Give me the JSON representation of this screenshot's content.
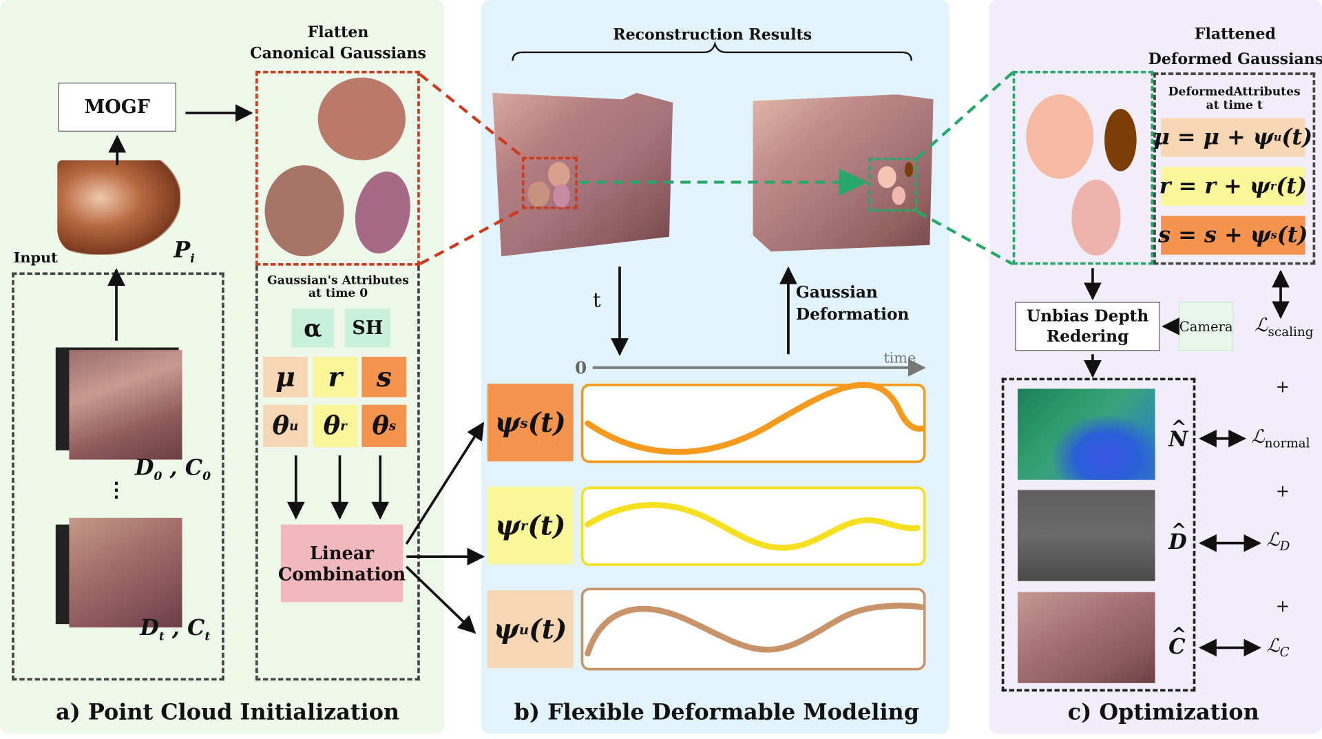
{
  "panel_a": {
    "caption": "a) Point Cloud Initialization",
    "mogf": "MOGF",
    "input_label": "Input",
    "pi_label": "P",
    "pi_sub": "i",
    "d0c0": "D",
    "d0_sub": "0",
    "c0_sep": " , C",
    "c0_sub": "0",
    "dots": "⋮",
    "dtct": "D",
    "dt_sub": "t",
    "ct_sep": " , C",
    "ct_sub": "t",
    "flatten_line1": "Flatten",
    "flatten_line2": "Canonical Gaussians",
    "attr_title1": "Gaussian's Attributes",
    "attr_title2": "at time 0",
    "alpha": "α",
    "sh": "SH",
    "mu": "μ",
    "r": "r",
    "s": "s",
    "theta": "θ",
    "theta_mu_sup": "u",
    "theta_r_sup": "r",
    "theta_s_sup": "s",
    "linear1": "Linear",
    "linear2": "Combination"
  },
  "panel_b": {
    "caption": "b) Flexible Deformable Modeling",
    "recon_title": "Reconstruction Results",
    "t_label": "t",
    "gauss_def1": "Gaussian",
    "gauss_def2": "Deformation",
    "axis_zero": "0",
    "axis_time": "time",
    "psi": "ψ",
    "psi_s_sup": "s",
    "psi_r_sup": "r",
    "psi_u_sup": "u",
    "psi_arg": "(t)"
  },
  "panel_c": {
    "caption": "c) Optimization",
    "flat_line1": "Flattened",
    "flat_line2": "Deformed Gaussians",
    "def_attr1": "DeformedAttributes",
    "def_attr2": "at time t",
    "eq_mu": "μ = μ + ψ",
    "eq_mu_sup": "u",
    "eq_r": "r = r + ψ",
    "eq_r_sup": "r",
    "eq_s": "s = s + ψ",
    "eq_s_sup": "s",
    "eq_tail": "(t)",
    "unbias1": "Unbias Depth",
    "unbias2": "Redering",
    "camera": "Camera",
    "loss_L": "ℒ",
    "loss_scaling": "scaling",
    "loss_normal": "normal",
    "loss_D": "D",
    "loss_C": "C",
    "plus": "+",
    "n_hat": "N",
    "d_hat": "D",
    "c_hat": "C"
  },
  "colors": {
    "panel_a_bg": "#eef8ea",
    "panel_b_bg": "#e2f3fc",
    "panel_c_bg": "#f1eefa",
    "red_dash": "#cc3b1e",
    "green_dash": "#26a86b",
    "orange": "#f5944f",
    "yellow": "#fbf69a",
    "peach": "#f7d6b4",
    "mint": "#c9f0dc",
    "pink": "#f2b8bd",
    "curve_s": "#f59a1d",
    "curve_r": "#f4e020",
    "curve_u": "#c9936a"
  }
}
